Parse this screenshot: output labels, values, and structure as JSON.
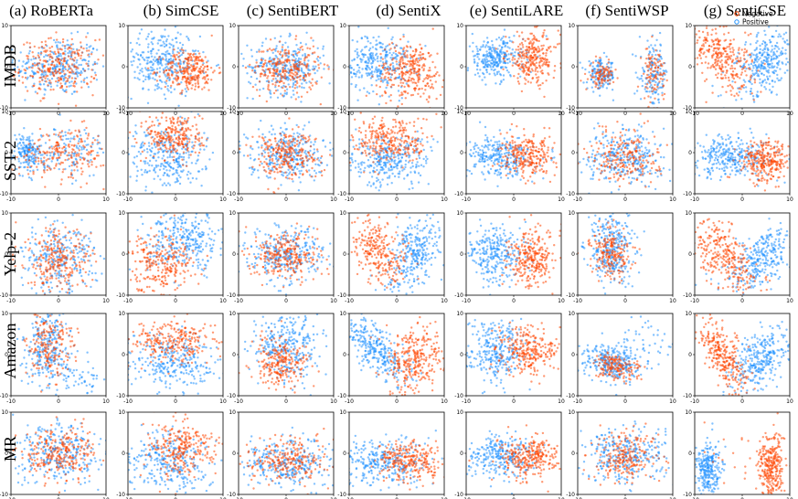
{
  "chart_data": {
    "type": "scatter",
    "columns": [
      "(a) RoBERTa",
      "(b) SimCSE",
      "(c) SentiBERT",
      "(d) SentiX",
      "(e) SentiLARE",
      "(f) SentiWSP",
      "(g) SentiCSE"
    ],
    "rows": [
      "IMDB",
      "SST-2",
      "Yelp-2",
      "Amazon",
      "MR"
    ],
    "x_ticks": [
      "-10",
      "0",
      "10"
    ],
    "y_ticks": [
      "10",
      "0",
      "-10"
    ],
    "xlim": [
      -10,
      10
    ],
    "ylim": [
      -10,
      10
    ],
    "legend": {
      "position": "top-right",
      "entries": [
        {
          "label": "Negative",
          "color": "#ff4500"
        },
        {
          "label": "Positive",
          "color": "#1e90ff"
        }
      ]
    },
    "series_colors": {
      "negative": "#ff4500",
      "positive": "#1e90ff"
    }
  }
}
